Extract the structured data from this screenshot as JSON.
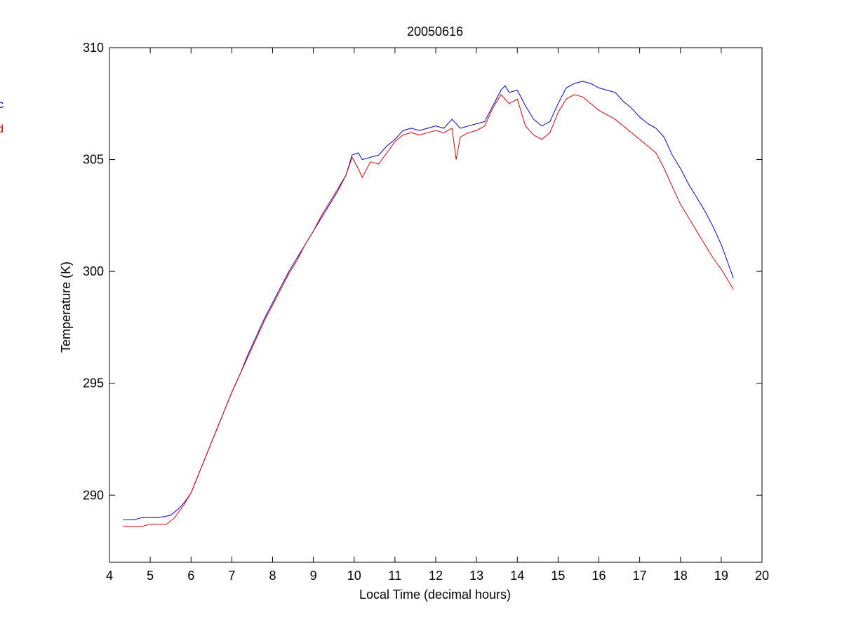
{
  "chart_data": {
    "type": "line",
    "title": "20050616",
    "xlabel": "Local Time (decimal hours)",
    "ylabel": "Temperature (K)",
    "xlim": [
      4,
      20
    ],
    "ylim": [
      287,
      310
    ],
    "xticks": [
      4,
      5,
      6,
      7,
      8,
      9,
      10,
      11,
      12,
      13,
      14,
      15,
      16,
      17,
      18,
      19,
      20
    ],
    "yticks": [
      290,
      295,
      300,
      305,
      310
    ],
    "grid": false,
    "legend": {
      "placement": "left-outside",
      "entries": [
        "c",
        "d"
      ]
    },
    "series": [
      {
        "name": "c",
        "color": "#0000cc",
        "x": [
          4.33,
          4.6,
          4.8,
          5.0,
          5.2,
          5.5,
          5.7,
          5.85,
          6.0,
          6.2,
          6.4,
          6.6,
          6.8,
          7.0,
          7.2,
          7.4,
          7.6,
          7.8,
          8.0,
          8.2,
          8.4,
          8.6,
          8.8,
          9.0,
          9.2,
          9.4,
          9.6,
          9.8,
          9.95,
          10.1,
          10.2,
          10.4,
          10.6,
          10.8,
          11.0,
          11.2,
          11.4,
          11.6,
          11.8,
          12.0,
          12.2,
          12.4,
          12.6,
          12.8,
          13.0,
          13.2,
          13.4,
          13.6,
          13.7,
          13.8,
          14.0,
          14.2,
          14.4,
          14.6,
          14.8,
          15.0,
          15.2,
          15.4,
          15.6,
          15.8,
          16.0,
          16.2,
          16.4,
          16.6,
          16.8,
          17.0,
          17.2,
          17.4,
          17.6,
          17.8,
          18.0,
          18.2,
          18.4,
          18.6,
          18.8,
          19.0,
          19.2,
          19.3
        ],
        "y": [
          288.9,
          288.9,
          289.0,
          289.0,
          289.0,
          289.1,
          289.4,
          289.7,
          290.1,
          291.0,
          291.9,
          292.8,
          293.7,
          294.6,
          295.4,
          296.3,
          297.1,
          297.9,
          298.6,
          299.3,
          300.0,
          300.6,
          301.2,
          301.8,
          302.4,
          303.0,
          303.6,
          304.3,
          305.2,
          305.3,
          305.0,
          305.1,
          305.2,
          305.6,
          305.9,
          306.3,
          306.4,
          306.3,
          306.4,
          306.5,
          306.4,
          306.8,
          306.4,
          306.5,
          306.6,
          306.7,
          307.4,
          308.1,
          308.3,
          308.0,
          308.1,
          307.4,
          306.8,
          306.5,
          306.7,
          307.5,
          308.2,
          308.4,
          308.5,
          308.4,
          308.2,
          308.1,
          308.0,
          307.6,
          307.3,
          306.9,
          306.6,
          306.4,
          306.0,
          305.2,
          304.6,
          303.9,
          303.3,
          302.7,
          302.0,
          301.2,
          300.2,
          299.7
        ]
      },
      {
        "name": "d",
        "color": "#dd0000",
        "x": [
          4.33,
          4.6,
          4.8,
          5.0,
          5.2,
          5.4,
          5.6,
          5.8,
          6.0,
          6.2,
          6.4,
          6.6,
          6.8,
          7.0,
          7.2,
          7.4,
          7.6,
          7.8,
          8.0,
          8.2,
          8.4,
          8.6,
          8.8,
          9.0,
          9.2,
          9.4,
          9.6,
          9.8,
          9.95,
          10.1,
          10.2,
          10.4,
          10.6,
          10.8,
          11.0,
          11.2,
          11.4,
          11.6,
          11.8,
          12.0,
          12.2,
          12.4,
          12.5,
          12.6,
          12.8,
          13.0,
          13.2,
          13.4,
          13.6,
          13.8,
          14.0,
          14.2,
          14.4,
          14.6,
          14.8,
          15.0,
          15.2,
          15.4,
          15.6,
          15.8,
          16.0,
          16.2,
          16.4,
          16.6,
          16.8,
          17.0,
          17.2,
          17.4,
          17.6,
          17.8,
          18.0,
          18.2,
          18.4,
          18.6,
          18.8,
          19.0,
          19.2,
          19.3
        ],
        "y": [
          288.6,
          288.6,
          288.6,
          288.7,
          288.7,
          288.7,
          289.0,
          289.5,
          290.1,
          291.0,
          291.9,
          292.8,
          293.7,
          294.6,
          295.4,
          296.2,
          297.0,
          297.8,
          298.5,
          299.2,
          299.9,
          300.5,
          301.2,
          301.8,
          302.5,
          303.1,
          303.7,
          304.3,
          305.1,
          304.6,
          304.2,
          304.9,
          304.8,
          305.3,
          305.8,
          306.1,
          306.2,
          306.1,
          306.2,
          306.3,
          306.2,
          306.4,
          305.0,
          306.0,
          306.2,
          306.3,
          306.5,
          307.3,
          307.9,
          307.5,
          307.7,
          306.5,
          306.1,
          305.9,
          306.2,
          307.1,
          307.7,
          307.9,
          307.8,
          307.5,
          307.2,
          307.0,
          306.8,
          306.5,
          306.2,
          305.9,
          305.6,
          305.3,
          304.6,
          303.8,
          303.0,
          302.4,
          301.8,
          301.2,
          300.6,
          300.1,
          299.5,
          299.2
        ]
      }
    ]
  }
}
